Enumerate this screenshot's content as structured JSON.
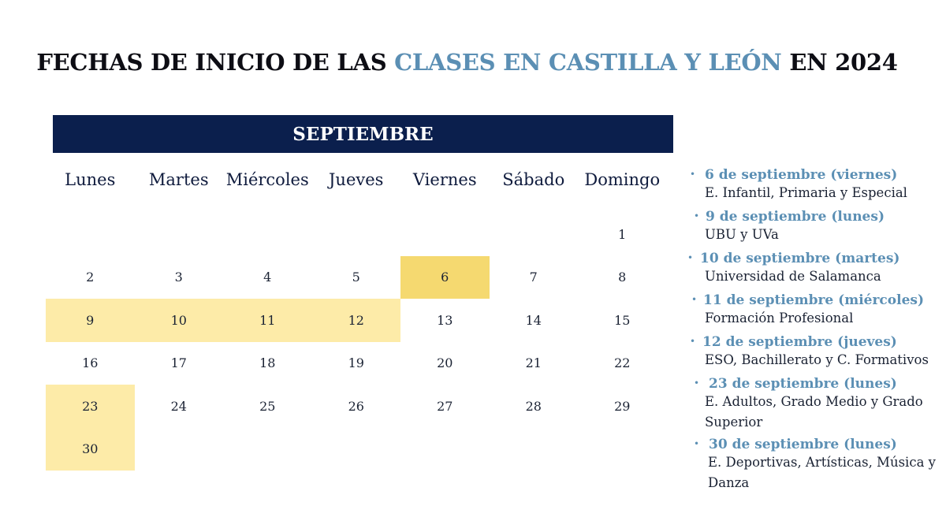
{
  "title": {
    "part1": "FECHAS DE INICIO DE LAS ",
    "part2": "CLASES EN CASTILLA Y LEÓN",
    "part3": " EN 2024"
  },
  "calendar": {
    "month": "SEPTIEMBRE",
    "weekdays": [
      "Lunes",
      "Martes",
      "Miércoles",
      "Jueves",
      "Viernes",
      "Sábado",
      "Domingo"
    ],
    "start_offset": 6,
    "days_in_month": 30,
    "highlights": {
      "6": "dark",
      "9": "light",
      "10": "light",
      "11": "light",
      "12": "light",
      "23": "light",
      "30": "light"
    },
    "colors": {
      "header_bg": "#0b1f4d",
      "highlight_light": "#fdeba8",
      "highlight_dark": "#f5d970",
      "accent_blue": "#5b8fb4"
    }
  },
  "legend": [
    {
      "date": "6 de septiembre (viernes)",
      "desc": "E. Infantil, Primaria y Especial"
    },
    {
      "date": "9 de septiembre (lunes)",
      "desc": "UBU y UVa"
    },
    {
      "date": "10 de septiembre (martes)",
      "desc": "Universidad de Salamanca"
    },
    {
      "date": "11 de septiembre (miércoles)",
      "desc": "Formación Profesional"
    },
    {
      "date": "12 de septiembre (jueves)",
      "desc": "ESO, Bachillerato y C. Formativos"
    },
    {
      "date": "23 de septiembre (lunes)",
      "desc": "E. Adultos, Grado Medio y Grado Superior"
    },
    {
      "date": "30 de septiembre (lunes)",
      "desc": "E. Deportivas, Artísticas, Música y Danza"
    }
  ]
}
